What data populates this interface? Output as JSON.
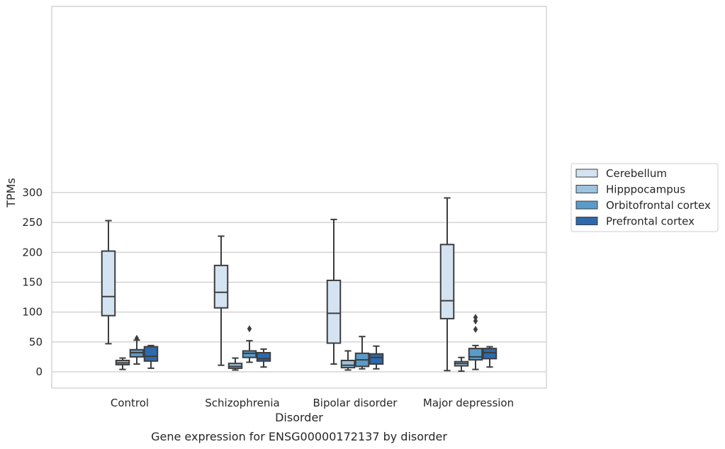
{
  "chart_data": {
    "type": "boxplot",
    "title": "",
    "caption": "Gene expression for ENSG00000172137 by disorder",
    "xlabel": "Disorder",
    "ylabel": "TPMs",
    "ylim": [
      -13,
      306
    ],
    "yticks": [
      0,
      50,
      100,
      150,
      200,
      250,
      300
    ],
    "grid": "horizontal",
    "legend_position": "right",
    "categories": [
      "Control",
      "Schizophrenia",
      "Bipolar disorder",
      "Major depression"
    ],
    "series": [
      {
        "name": "Cerebellum",
        "color": "#d4e3f2",
        "boxes": [
          {
            "whislo": 47,
            "q1": 94,
            "med": 126,
            "q3": 202,
            "whishi": 253,
            "fliers": []
          },
          {
            "whislo": 11,
            "q1": 107,
            "med": 133,
            "q3": 178,
            "whishi": 227,
            "fliers": []
          },
          {
            "whislo": 13,
            "q1": 48,
            "med": 98,
            "q3": 153,
            "whishi": 255,
            "fliers": []
          },
          {
            "whislo": 2,
            "q1": 89,
            "med": 119,
            "q3": 213,
            "whishi": 291,
            "fliers": []
          }
        ]
      },
      {
        "name": "Hipppocampus",
        "color": "#9dc3de",
        "boxes": [
          {
            "whislo": 4,
            "q1": 12,
            "med": 15,
            "q3": 19,
            "whishi": 23,
            "fliers": []
          },
          {
            "whislo": 3,
            "q1": 6,
            "med": 9,
            "q3": 14,
            "whishi": 23,
            "fliers": []
          },
          {
            "whislo": 3,
            "q1": 7,
            "med": 11,
            "q3": 19,
            "whishi": 35,
            "fliers": []
          },
          {
            "whislo": 1,
            "q1": 10,
            "med": 14,
            "q3": 17,
            "whishi": 24,
            "fliers": []
          }
        ]
      },
      {
        "name": "Orbitofrontal cortex",
        "color": "#5a9bca",
        "boxes": [
          {
            "whislo": 13,
            "q1": 25,
            "med": 32,
            "q3": 37,
            "whishi": 53,
            "fliers": [
              56
            ]
          },
          {
            "whislo": 16,
            "q1": 24,
            "med": 31,
            "q3": 35,
            "whishi": 52,
            "fliers": [
              72
            ]
          },
          {
            "whislo": 5,
            "q1": 9,
            "med": 20,
            "q3": 31,
            "whishi": 59,
            "fliers": []
          },
          {
            "whislo": 4,
            "q1": 20,
            "med": 25,
            "q3": 39,
            "whishi": 44,
            "fliers": [
              71,
              85,
              91
            ]
          }
        ]
      },
      {
        "name": "Prefrontal cortex",
        "color": "#2d69ad",
        "boxes": [
          {
            "whislo": 6,
            "q1": 18,
            "med": 26,
            "q3": 42,
            "whishi": 44,
            "fliers": []
          },
          {
            "whislo": 8,
            "q1": 18,
            "med": 22,
            "q3": 32,
            "whishi": 38,
            "fliers": []
          },
          {
            "whislo": 5,
            "q1": 13,
            "med": 24,
            "q3": 30,
            "whishi": 43,
            "fliers": []
          },
          {
            "whislo": 8,
            "q1": 22,
            "med": 32,
            "q3": 39,
            "whishi": 42,
            "fliers": []
          }
        ]
      }
    ]
  }
}
